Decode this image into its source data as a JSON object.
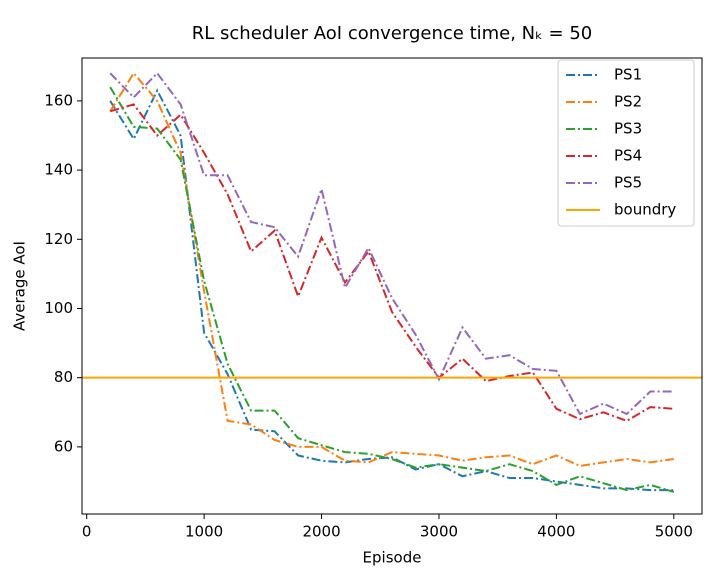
{
  "chart_data": {
    "type": "line",
    "title": "RL scheduler AoI convergence time, Nₖ = 50",
    "x_label": "Episode",
    "y_label": "Average AoI",
    "x": [
      200,
      400,
      600,
      800,
      1000,
      1200,
      1400,
      1600,
      1800,
      2000,
      2200,
      2400,
      2600,
      2800,
      3000,
      3200,
      3400,
      3600,
      3800,
      4000,
      4200,
      4400,
      4600,
      4800,
      5000
    ],
    "series": [
      {
        "name": "PS1",
        "color": "#1f77b4",
        "values": [
          160,
          149,
          163,
          150,
          93,
          81,
          65,
          64.5,
          57.5,
          56,
          55.5,
          56.5,
          57,
          53.5,
          55,
          51.5,
          53,
          51,
          51,
          50,
          49,
          48,
          48,
          47.5,
          47.5
        ]
      },
      {
        "name": "PS2",
        "color": "#ff7f0e",
        "values": [
          157,
          168,
          160,
          145,
          105,
          67.5,
          66.5,
          62,
          60,
          60,
          56,
          55.5,
          58.5,
          58,
          57.5,
          56,
          57,
          57.5,
          55,
          57.5,
          54.5,
          55.5,
          56.5,
          55.5,
          56.5
        ]
      },
      {
        "name": "PS3",
        "color": "#2ca02c",
        "values": [
          164,
          152.5,
          152,
          143,
          108,
          84,
          70.5,
          70.5,
          62.5,
          60.5,
          58.5,
          58,
          56.5,
          54,
          55,
          54,
          53,
          55,
          53,
          49,
          51.5,
          49.5,
          47.5,
          49,
          47
        ]
      },
      {
        "name": "PS4",
        "color": "#d62728",
        "values": [
          157,
          159,
          150,
          156,
          145,
          133,
          116.5,
          122.5,
          103.5,
          120.5,
          107.5,
          116.5,
          99,
          89,
          80,
          85.5,
          79,
          80.5,
          81.5,
          71,
          68,
          70,
          67.5,
          71.5,
          71
        ]
      },
      {
        "name": "PS5",
        "color": "#9467bd",
        "values": [
          168,
          161,
          168,
          159,
          138.5,
          138.5,
          125,
          123.5,
          115,
          134.5,
          106,
          117.5,
          103,
          92.5,
          79.5,
          94.5,
          85.5,
          86.5,
          82.5,
          82,
          69.5,
          72.5,
          69.5,
          76,
          76
        ]
      }
    ],
    "hlines": [
      {
        "name": "boundry",
        "y": 80,
        "color": "#ffa500"
      }
    ],
    "xlim": [
      -40,
      5240
    ],
    "xticks": [
      0,
      1000,
      2000,
      3000,
      4000,
      5000
    ],
    "ylim": [
      40.6,
      172.4
    ],
    "yticks": [
      60,
      80,
      100,
      120,
      140,
      160
    ],
    "legend": "upper right"
  }
}
